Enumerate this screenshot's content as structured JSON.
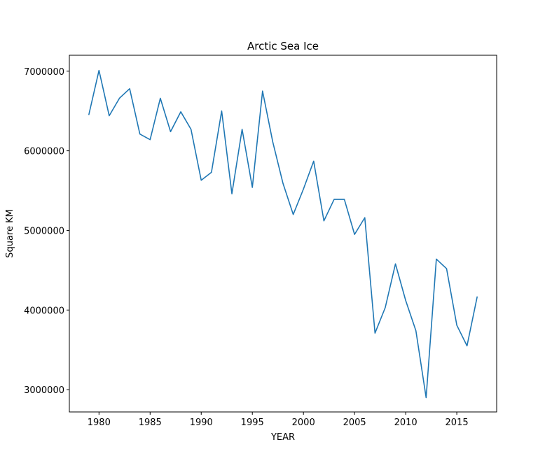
{
  "chart_data": {
    "type": "line",
    "title": "Arctic Sea Ice",
    "xlabel": "YEAR",
    "ylabel": "Square KM",
    "xlim": [
      1977.1,
      2018.9
    ],
    "ylim": [
      2720000,
      7200000
    ],
    "xticks": [
      1980,
      1985,
      1990,
      1995,
      2000,
      2005,
      2010,
      2015
    ],
    "yticks": [
      3000000,
      4000000,
      5000000,
      6000000,
      7000000
    ],
    "grid": false,
    "line_color": "#1f77b4",
    "series": [
      {
        "x": [
          1979,
          1980,
          1981,
          1982,
          1983,
          1984,
          1985,
          1986,
          1987,
          1988,
          1989,
          1990,
          1991,
          1992,
          1993,
          1994,
          1995,
          1996,
          1997,
          1998,
          1999,
          2000,
          2001,
          2002,
          2003,
          2004,
          2005,
          2006,
          2007,
          2008,
          2009,
          2010,
          2011,
          2012,
          2013,
          2014,
          2015,
          2016,
          2017
        ],
        "values": [
          6450000,
          7010000,
          6440000,
          6660000,
          6780000,
          6210000,
          6140000,
          6660000,
          6240000,
          6490000,
          6270000,
          5630000,
          5730000,
          6500000,
          5460000,
          6270000,
          5540000,
          6750000,
          6110000,
          5590000,
          5200000,
          5520000,
          5870000,
          5120000,
          5390000,
          5390000,
          4950000,
          5160000,
          3710000,
          4030000,
          4580000,
          4120000,
          3740000,
          2900000,
          4640000,
          4520000,
          3810000,
          3550000,
          4170000
        ]
      }
    ]
  }
}
